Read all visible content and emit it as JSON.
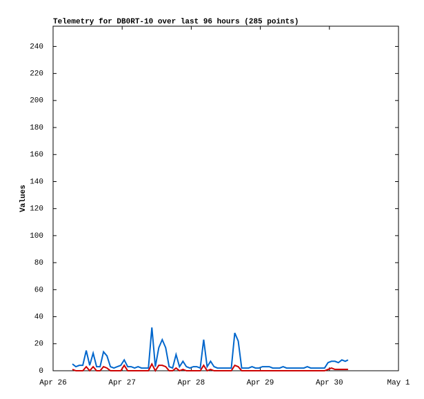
{
  "chart_data": {
    "type": "line",
    "title": "Telemetry for DB0RT-10 over last 96 hours (285 points)",
    "y_label": "Values",
    "x": [
      0.28,
      0.33,
      0.38,
      0.43,
      0.48,
      0.53,
      0.58,
      0.63,
      0.68,
      0.73,
      0.78,
      0.83,
      0.88,
      0.93,
      0.98,
      1.03,
      1.08,
      1.13,
      1.18,
      1.23,
      1.28,
      1.33,
      1.38,
      1.43,
      1.48,
      1.53,
      1.58,
      1.63,
      1.68,
      1.73,
      1.78,
      1.83,
      1.88,
      1.93,
      1.98,
      2.03,
      2.08,
      2.13,
      2.18,
      2.23,
      2.28,
      2.33,
      2.38,
      2.43,
      2.48,
      2.53,
      2.58,
      2.63,
      2.68,
      2.73,
      2.78,
      2.83,
      2.88,
      2.93,
      2.98,
      3.03,
      3.08,
      3.13,
      3.18,
      3.23,
      3.28,
      3.33,
      3.38,
      3.43,
      3.48,
      3.53,
      3.58,
      3.63,
      3.68,
      3.73,
      3.78,
      3.83,
      3.88,
      3.93,
      3.98,
      4.03,
      4.08,
      4.13,
      4.18,
      4.23,
      4.27
    ],
    "series": [
      {
        "color": "#0066cc",
        "values": [
          5,
          3,
          4,
          4,
          15,
          4,
          13,
          3,
          3,
          14,
          11,
          3,
          2,
          3,
          4,
          8,
          3,
          3,
          2,
          3,
          2,
          2,
          2,
          32,
          3,
          17,
          23,
          17,
          3,
          2,
          12,
          3,
          7,
          3,
          2,
          3,
          3,
          2,
          23,
          3,
          7,
          3,
          2,
          2,
          2,
          2,
          2,
          28,
          22,
          2,
          2,
          2,
          3,
          2,
          2,
          3,
          3,
          3,
          2,
          2,
          2,
          3,
          2,
          2,
          2,
          2,
          2,
          2,
          3,
          2,
          2,
          2,
          2,
          2,
          6,
          7,
          7,
          6,
          8,
          7,
          8
        ]
      },
      {
        "color": "#cc0000",
        "values": [
          1,
          0,
          0,
          0,
          3,
          0,
          3,
          0,
          0,
          3,
          2,
          0,
          0,
          0,
          0,
          4,
          0,
          0,
          0,
          0,
          0,
          0,
          0,
          5,
          0,
          4,
          4,
          3,
          0,
          0,
          2,
          0,
          1,
          0,
          0,
          0,
          0,
          0,
          4,
          0,
          1,
          0,
          0,
          0,
          0,
          0,
          0,
          4,
          3,
          0,
          0,
          0,
          0,
          0,
          0,
          0,
          0,
          0,
          0,
          0,
          0,
          0,
          0,
          0,
          0,
          0,
          0,
          0,
          0,
          0,
          0,
          0,
          0,
          0,
          1,
          2,
          1,
          1,
          1,
          1,
          1
        ]
      }
    ],
    "xlim": [
      0,
      5
    ],
    "xticks": [
      {
        "value": 0,
        "label": "Apr 26"
      },
      {
        "value": 1,
        "label": "Apr 27"
      },
      {
        "value": 2,
        "label": "Apr 28"
      },
      {
        "value": 3,
        "label": "Apr 29"
      },
      {
        "value": 4,
        "label": "Apr 30"
      },
      {
        "value": 5,
        "label": "May 1"
      }
    ],
    "ylim": [
      0,
      255
    ],
    "yticks": [
      0,
      20,
      40,
      60,
      80,
      100,
      120,
      140,
      160,
      180,
      200,
      220,
      240
    ]
  }
}
